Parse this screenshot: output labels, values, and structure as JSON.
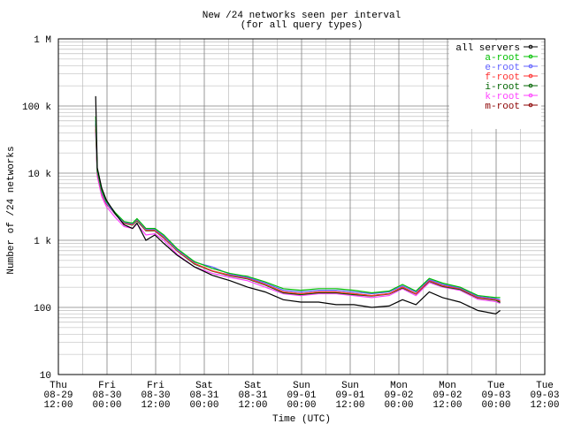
{
  "chart_data": {
    "type": "line",
    "title": "New /24 networks seen per interval",
    "subtitle": "(for all query types)",
    "xlabel": "Time (UTC)",
    "ylabel": "Number of /24 networks",
    "log_y": true,
    "grid": true,
    "legend": "upper right",
    "xlim": [
      0,
      120
    ],
    "xticks": [
      {
        "value": 0,
        "label": "Thu\n08-29\n12:00"
      },
      {
        "value": 12,
        "label": "Fri\n08-30\n00:00"
      },
      {
        "value": 24,
        "label": "Fri\n08-30\n12:00"
      },
      {
        "value": 36,
        "label": "Sat\n08-31\n00:00"
      },
      {
        "value": 48,
        "label": "Sat\n08-31\n12:00"
      },
      {
        "value": 60,
        "label": "Sun\n09-01\n00:00"
      },
      {
        "value": 72,
        "label": "Sun\n09-01\n12:00"
      },
      {
        "value": 84,
        "label": "Mon\n09-02\n00:00"
      },
      {
        "value": 96,
        "label": "Mon\n09-02\n12:00"
      },
      {
        "value": 108,
        "label": "Tue\n09-03\n00:00"
      },
      {
        "value": 120,
        "label": "Tue\n09-03\n12:00"
      }
    ],
    "ylim": [
      10,
      1000000
    ],
    "yticks": [
      10,
      100,
      {
        "value": 1000,
        "label": "1 k"
      },
      {
        "value": 10000,
        "label": "10 k"
      },
      {
        "value": 100000,
        "label": "100 k"
      },
      {
        "value": 1000000,
        "label": "1 M"
      }
    ],
    "x": [
      9.2,
      9.6,
      10.7,
      11.8,
      14,
      16.2,
      18.3,
      19.4,
      21.6,
      23.8,
      26,
      29.3,
      33.6,
      38,
      42.4,
      46.7,
      51,
      55.5,
      59.8,
      64.2,
      68.5,
      72.9,
      77.3,
      81.6,
      84.9,
      88.2,
      91.5,
      94.8,
      99.1,
      103.5,
      107.9,
      109
    ],
    "series": [
      {
        "name": "all servers",
        "color": "#000000",
        "values": [
          140000,
          12000,
          6000,
          4000,
          2500,
          1700,
          1500,
          1800,
          1000,
          1200,
          900,
          600,
          400,
          300,
          250,
          200,
          170,
          130,
          120,
          120,
          110,
          110,
          100,
          105,
          130,
          110,
          170,
          140,
          120,
          90,
          80,
          90
        ]
      },
      {
        "name": "a-root",
        "color": "#00c000",
        "values": [
          70000,
          11000,
          5500,
          3800,
          2600,
          1900,
          1800,
          2100,
          1500,
          1500,
          1200,
          750,
          480,
          380,
          320,
          290,
          240,
          190,
          180,
          190,
          190,
          180,
          165,
          175,
          220,
          175,
          270,
          230,
          200,
          150,
          140,
          140
        ]
      },
      {
        "name": "e-root",
        "color": "#6060ff",
        "values": [
          60000,
          10500,
          5200,
          3600,
          2500,
          1850,
          1750,
          2050,
          1450,
          1450,
          1150,
          720,
          470,
          400,
          310,
          280,
          230,
          180,
          170,
          180,
          180,
          170,
          160,
          170,
          210,
          170,
          260,
          220,
          195,
          145,
          135,
          130
        ]
      },
      {
        "name": "f-root",
        "color": "#ff3030",
        "values": [
          50000,
          10000,
          5000,
          3500,
          2500,
          1800,
          1700,
          2000,
          1400,
          1400,
          1100,
          700,
          450,
          350,
          300,
          270,
          220,
          170,
          160,
          170,
          170,
          160,
          150,
          160,
          200,
          160,
          250,
          210,
          190,
          140,
          130,
          125
        ]
      },
      {
        "name": "i-root",
        "color": "#006400",
        "values": [
          55000,
          10200,
          5100,
          3550,
          2450,
          1780,
          1680,
          1950,
          1380,
          1380,
          1080,
          690,
          440,
          345,
          295,
          265,
          215,
          165,
          155,
          165,
          165,
          155,
          148,
          158,
          195,
          158,
          245,
          205,
          185,
          138,
          128,
          118
        ]
      },
      {
        "name": "k-root",
        "color": "#ff40ff",
        "values": [
          40000,
          9000,
          4500,
          3200,
          2200,
          1600,
          1500,
          1750,
          1200,
          1250,
          1000,
          620,
          400,
          320,
          280,
          250,
          200,
          160,
          150,
          160,
          160,
          150,
          140,
          150,
          190,
          150,
          235,
          200,
          180,
          132,
          122,
          115
        ]
      },
      {
        "name": "m-root",
        "color": "#8b0000",
        "values": [
          45000,
          10000,
          5000,
          3500,
          2500,
          1800,
          1700,
          2000,
          1400,
          1400,
          1100,
          700,
          450,
          350,
          300,
          270,
          220,
          170,
          160,
          170,
          170,
          160,
          150,
          160,
          200,
          160,
          250,
          210,
          190,
          140,
          130,
          120
        ]
      }
    ]
  }
}
